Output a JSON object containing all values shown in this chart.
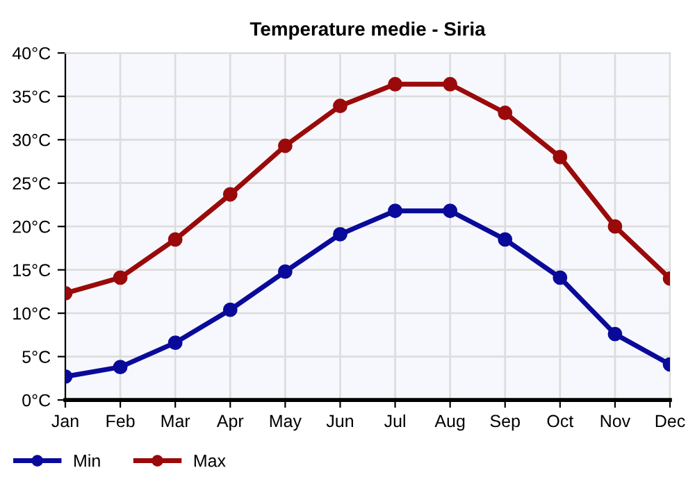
{
  "chart_data": {
    "type": "line",
    "title": "Temperature medie - Siria",
    "categories": [
      "Jan",
      "Feb",
      "Mar",
      "Apr",
      "May",
      "Jun",
      "Jul",
      "Aug",
      "Sep",
      "Oct",
      "Nov",
      "Dec"
    ],
    "series": [
      {
        "name": "Min",
        "color": "#0a0a9a",
        "values": [
          2.7,
          3.8,
          6.6,
          10.4,
          14.8,
          19.1,
          21.8,
          21.8,
          18.5,
          14.1,
          7.6,
          4.1
        ]
      },
      {
        "name": "Max",
        "color": "#9a0a0a",
        "values": [
          12.3,
          14.1,
          18.5,
          23.7,
          29.3,
          33.9,
          36.4,
          36.4,
          33.1,
          28.0,
          20.0,
          14.0
        ]
      }
    ],
    "ylim": [
      0,
      40
    ],
    "yticks": [
      {
        "value": 0,
        "label": "0°C"
      },
      {
        "value": 5,
        "label": "5°C"
      },
      {
        "value": 10,
        "label": "10°C"
      },
      {
        "value": 15,
        "label": "15°C"
      },
      {
        "value": 20,
        "label": "20°C"
      },
      {
        "value": 25,
        "label": "25°C"
      },
      {
        "value": 30,
        "label": "30°C"
      },
      {
        "value": 35,
        "label": "35°C"
      },
      {
        "value": 40,
        "label": "40°C"
      }
    ],
    "grid": true,
    "legend": "bottom left",
    "marker": "circle",
    "line_style": "solid"
  }
}
